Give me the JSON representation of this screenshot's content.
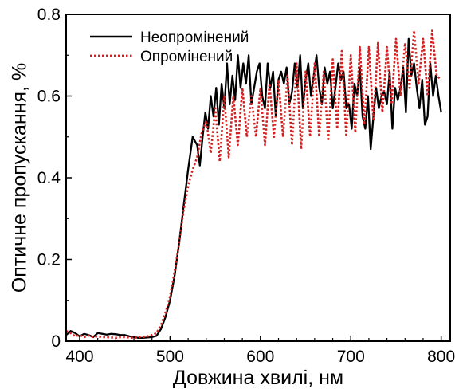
{
  "chart_data": {
    "type": "line",
    "title": "",
    "xlabel": "Довжина хвилі, нм",
    "ylabel": "Оптичне пропускання, %",
    "xlim": [
      385,
      810
    ],
    "ylim": [
      0,
      0.8
    ],
    "x_ticks": [
      "400",
      "500",
      "600",
      "700",
      "800"
    ],
    "x_tick_values": [
      400,
      500,
      600,
      700,
      800
    ],
    "y_ticks": [
      "0",
      "0.2",
      "0.4",
      "0.6",
      "0.8"
    ],
    "y_tick_values": [
      0,
      0.2,
      0.4,
      0.6,
      0.8
    ],
    "grid": false,
    "legend_position": "top-left",
    "series": [
      {
        "name": "Неопромінений",
        "color": "#000000",
        "style": "solid",
        "x": [
          385,
          390,
          395,
          400,
          405,
          410,
          415,
          420,
          425,
          430,
          435,
          440,
          445,
          450,
          455,
          460,
          465,
          470,
          475,
          480,
          485,
          490,
          495,
          500,
          505,
          510,
          515,
          520,
          525,
          530,
          533,
          536,
          539,
          542,
          545,
          548,
          551,
          554,
          557,
          560,
          563,
          566,
          569,
          572,
          575,
          578,
          581,
          584,
          587,
          590,
          593,
          596,
          599,
          602,
          605,
          608,
          611,
          614,
          617,
          620,
          623,
          626,
          629,
          632,
          635,
          638,
          641,
          644,
          647,
          650,
          653,
          656,
          659,
          662,
          665,
          668,
          671,
          674,
          677,
          680,
          683,
          686,
          689,
          692,
          695,
          698,
          701,
          704,
          707,
          710,
          713,
          716,
          719,
          722,
          725,
          728,
          731,
          734,
          737,
          740,
          743,
          746,
          749,
          752,
          755,
          758,
          761,
          764,
          767,
          770,
          773,
          776,
          779,
          782,
          785,
          788,
          791,
          794,
          797,
          800
        ],
        "y": [
          0.015,
          0.025,
          0.02,
          0.012,
          0.018,
          0.015,
          0.01,
          0.02,
          0.018,
          0.016,
          0.018,
          0.017,
          0.015,
          0.015,
          0.012,
          0.01,
          0.008,
          0.008,
          0.009,
          0.01,
          0.013,
          0.03,
          0.06,
          0.1,
          0.16,
          0.24,
          0.33,
          0.42,
          0.5,
          0.48,
          0.43,
          0.5,
          0.56,
          0.52,
          0.6,
          0.55,
          0.62,
          0.53,
          0.63,
          0.57,
          0.68,
          0.58,
          0.65,
          0.59,
          0.7,
          0.62,
          0.68,
          0.63,
          0.7,
          0.58,
          0.62,
          0.66,
          0.68,
          0.6,
          0.57,
          0.68,
          0.62,
          0.66,
          0.55,
          0.64,
          0.66,
          0.63,
          0.67,
          0.58,
          0.61,
          0.68,
          0.62,
          0.7,
          0.57,
          0.64,
          0.68,
          0.6,
          0.65,
          0.7,
          0.62,
          0.58,
          0.67,
          0.63,
          0.66,
          0.57,
          0.62,
          0.68,
          0.64,
          0.66,
          0.57,
          0.58,
          0.52,
          0.63,
          0.6,
          0.67,
          0.55,
          0.52,
          0.6,
          0.47,
          0.55,
          0.62,
          0.57,
          0.6,
          0.61,
          0.58,
          0.66,
          0.52,
          0.62,
          0.59,
          0.62,
          0.67,
          0.56,
          0.74,
          0.65,
          0.68,
          0.62,
          0.57,
          0.64,
          0.53,
          0.55,
          0.68,
          0.6,
          0.65,
          0.6,
          0.56
        ]
      },
      {
        "name": "Опромінений",
        "color": "#d21f1f",
        "style": "dotted",
        "x": [
          385,
          390,
          395,
          400,
          405,
          410,
          415,
          420,
          425,
          430,
          435,
          440,
          445,
          450,
          455,
          460,
          465,
          470,
          475,
          480,
          485,
          490,
          495,
          500,
          505,
          510,
          515,
          520,
          525,
          530,
          535,
          540,
          545,
          550,
          555,
          560,
          565,
          570,
          575,
          580,
          585,
          590,
          595,
          600,
          605,
          610,
          615,
          620,
          625,
          630,
          635,
          640,
          645,
          650,
          655,
          660,
          665,
          670,
          675,
          680,
          685,
          690,
          695,
          700,
          705,
          710,
          715,
          720,
          725,
          730,
          735,
          740,
          745,
          750,
          755,
          760,
          765,
          770,
          775,
          780,
          785,
          790,
          795,
          800
        ],
        "y": [
          0.025,
          0.02,
          0.012,
          0.015,
          0.01,
          0.014,
          0.01,
          0.012,
          0.01,
          0.01,
          0.009,
          0.008,
          0.01,
          0.01,
          0.009,
          0.008,
          0.01,
          0.01,
          0.012,
          0.015,
          0.02,
          0.04,
          0.07,
          0.11,
          0.17,
          0.24,
          0.32,
          0.38,
          0.42,
          0.45,
          0.51,
          0.54,
          0.46,
          0.57,
          0.44,
          0.6,
          0.45,
          0.6,
          0.48,
          0.62,
          0.5,
          0.6,
          0.5,
          0.62,
          0.48,
          0.63,
          0.5,
          0.64,
          0.5,
          0.65,
          0.48,
          0.68,
          0.47,
          0.66,
          0.5,
          0.68,
          0.5,
          0.66,
          0.49,
          0.69,
          0.52,
          0.71,
          0.5,
          0.7,
          0.51,
          0.72,
          0.53,
          0.72,
          0.54,
          0.73,
          0.56,
          0.72,
          0.58,
          0.74,
          0.6,
          0.73,
          0.62,
          0.76,
          0.63,
          0.74,
          0.6,
          0.76,
          0.65,
          0.64
        ]
      }
    ]
  }
}
